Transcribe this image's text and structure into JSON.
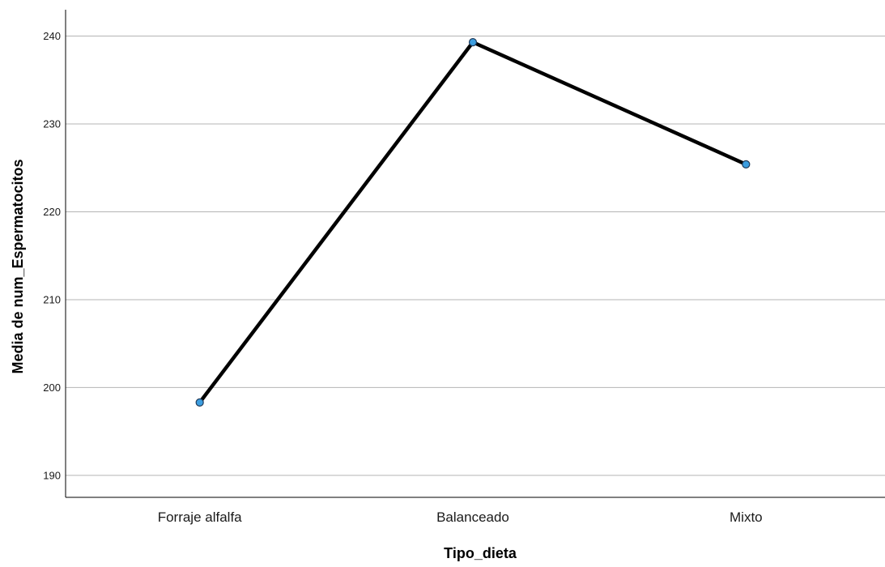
{
  "chart_data": {
    "type": "line",
    "title": "",
    "xlabel": "Tipo_dieta",
    "ylabel": "Media de num_Espermatocitos",
    "categories": [
      "Forraje alfalfa",
      "Balanceado",
      "Mixto"
    ],
    "series": [
      {
        "values": [
          198.3,
          239.3,
          225.4
        ]
      }
    ],
    "ylim": [
      187.5,
      243
    ],
    "yticks": [
      190,
      200,
      210,
      220,
      230,
      240
    ],
    "grid": "horizontal",
    "line_color": "#000000",
    "marker_fill": "#3c9ee0",
    "marker_edge": "#1f3a5a",
    "legend": "none"
  }
}
